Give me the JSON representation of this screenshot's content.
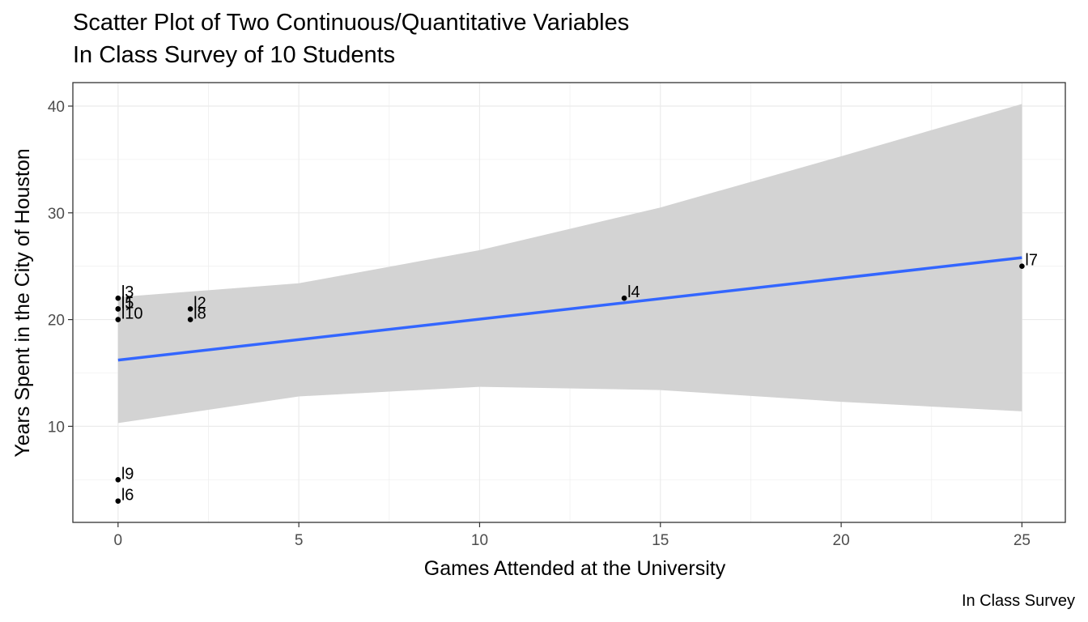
{
  "chart_data": {
    "type": "scatter",
    "title": "Scatter Plot of Two Continuous/Quantitative Variables",
    "subtitle": "In Class Survey of 10 Students",
    "caption": "In Class Survey",
    "xlabel": "Games Attended at the University",
    "ylabel": "Years Spent in the City of Houston",
    "xlim": [
      -1.25,
      26.2
    ],
    "ylim": [
      1.0,
      42.2
    ],
    "x_ticks": [
      0,
      5,
      10,
      15,
      20,
      25
    ],
    "y_ticks": [
      10,
      20,
      30,
      40
    ],
    "grid": true,
    "points": [
      {
        "label": "l1",
        "x": 0,
        "y": 21
      },
      {
        "label": "l2",
        "x": 2,
        "y": 21
      },
      {
        "label": "l3",
        "x": 0,
        "y": 22
      },
      {
        "label": "l4",
        "x": 14,
        "y": 22
      },
      {
        "label": "l5",
        "x": 0,
        "y": 21
      },
      {
        "label": "l6",
        "x": 0,
        "y": 3
      },
      {
        "label": "l7",
        "x": 25,
        "y": 25
      },
      {
        "label": "l8",
        "x": 2,
        "y": 20
      },
      {
        "label": "l9",
        "x": 0,
        "y": 5
      },
      {
        "label": "l10",
        "x": 0,
        "y": 20
      }
    ],
    "fit_line": {
      "method": "linear",
      "x": [
        0,
        25
      ],
      "y": [
        16.2,
        25.8
      ]
    },
    "confidence_band": {
      "x": [
        0,
        5,
        10,
        15,
        20,
        25
      ],
      "upper": [
        22.1,
        23.4,
        26.5,
        30.5,
        35.3,
        40.2
      ],
      "lower": [
        10.3,
        12.8,
        13.7,
        13.4,
        12.3,
        11.4
      ]
    },
    "colors": {
      "fit_line": "#3366ff",
      "band": "#d3d3d3",
      "points": "#000000"
    }
  }
}
